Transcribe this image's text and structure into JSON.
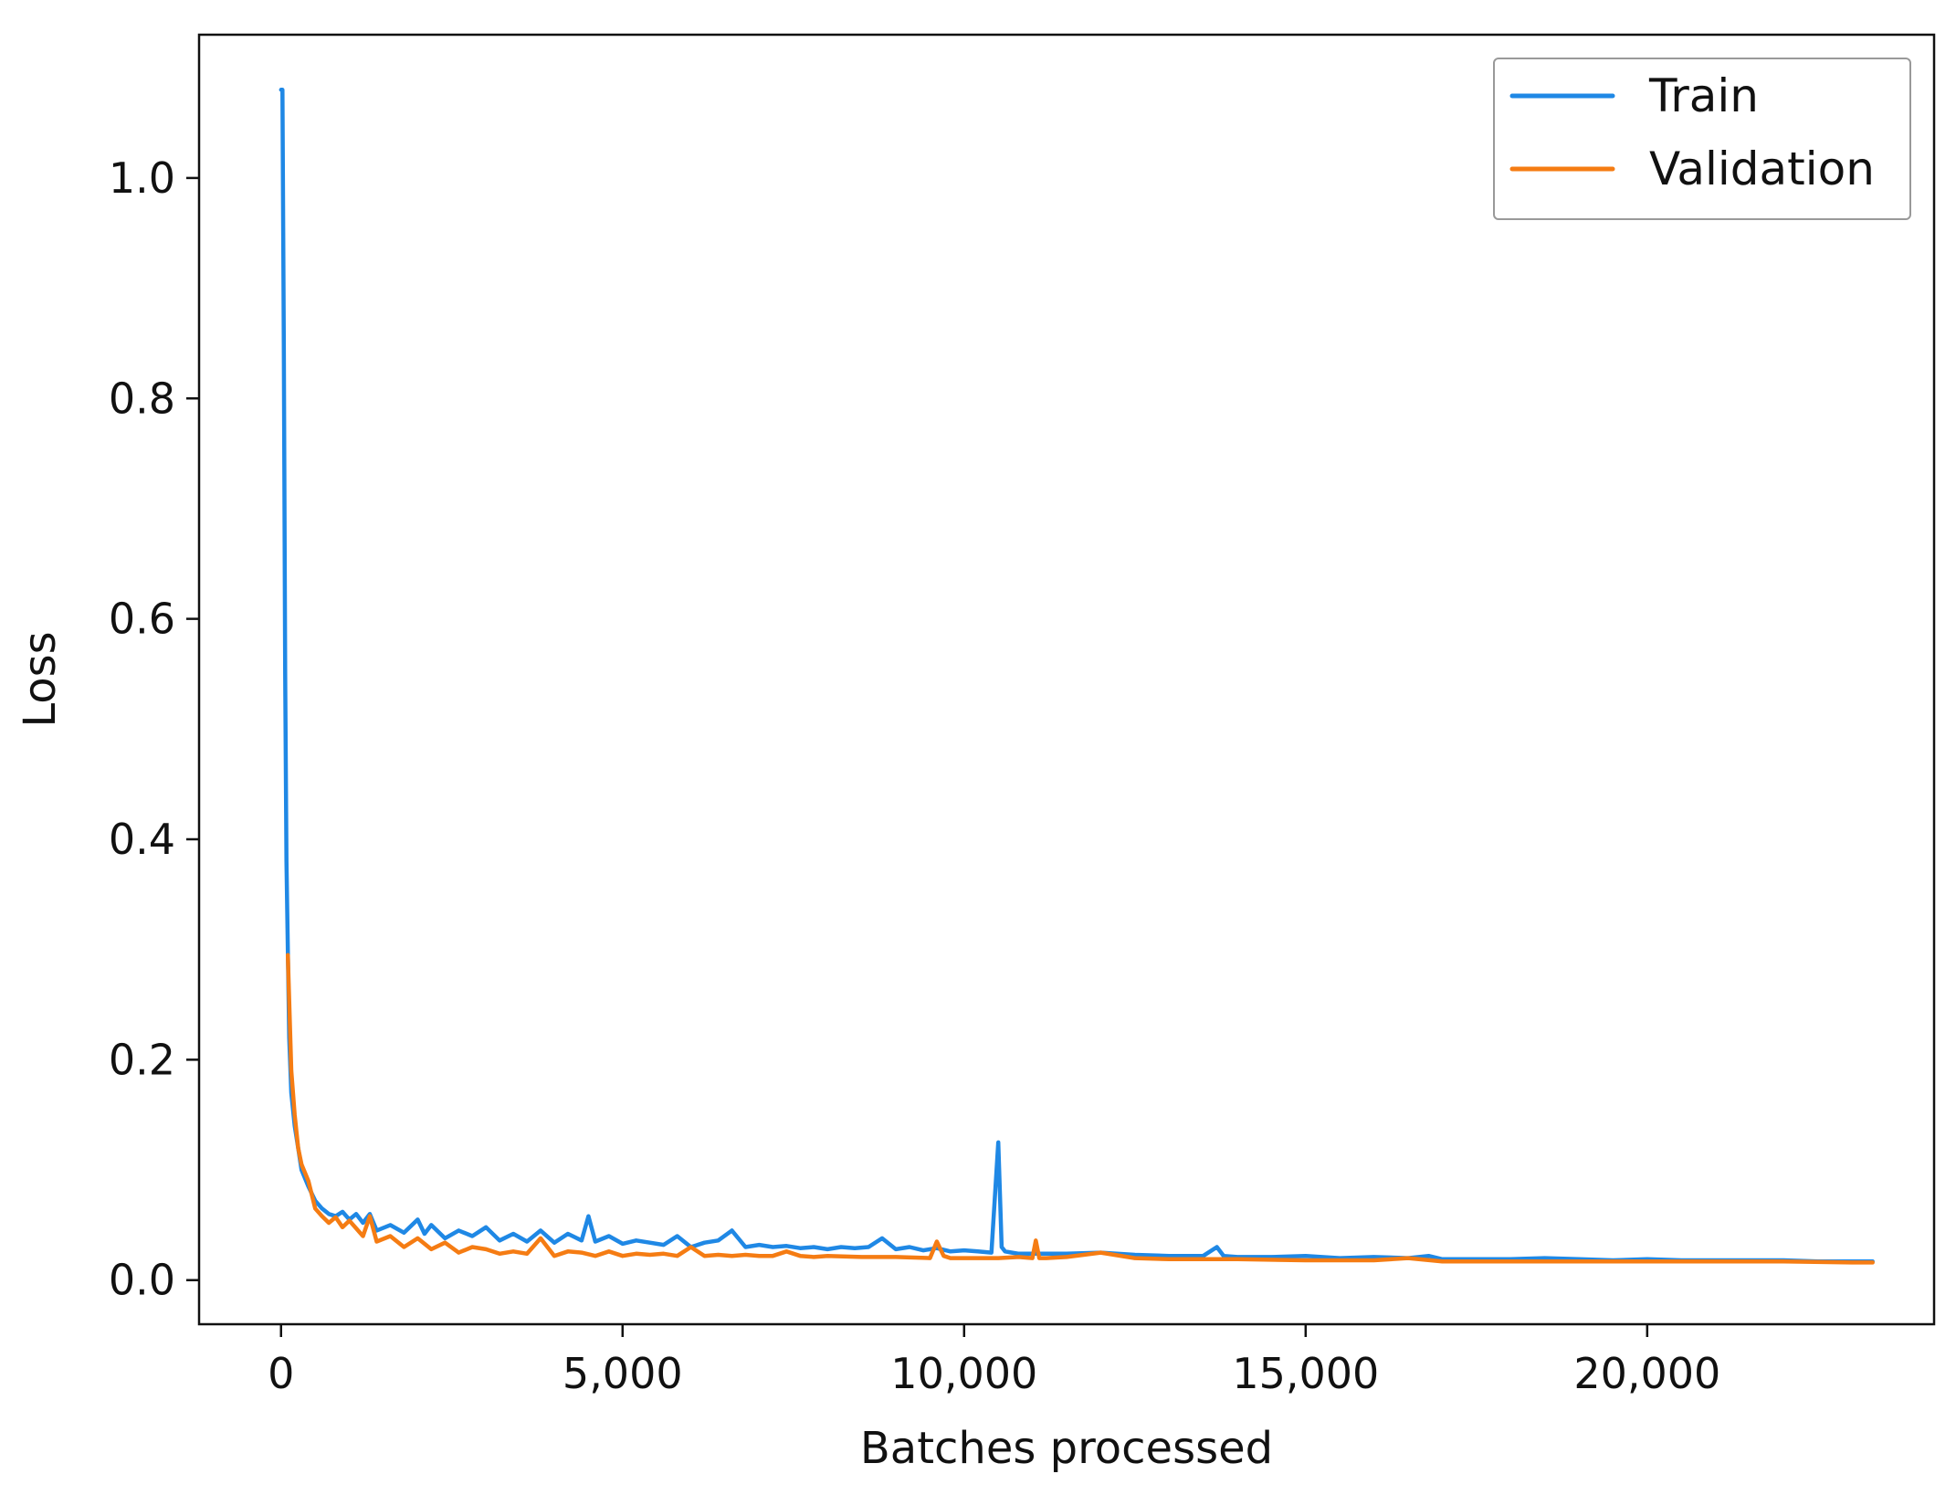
{
  "chart_data": {
    "type": "line",
    "title": "",
    "xlabel": "Batches processed",
    "ylabel": "Loss",
    "xlim": [
      -1200,
      24200
    ],
    "ylim": [
      -0.04,
      1.13
    ],
    "xticks": [
      0,
      5000,
      10000,
      15000,
      20000
    ],
    "xtick_labels": [
      "0",
      "5,000",
      "10,000",
      "15,000",
      "20,000"
    ],
    "yticks": [
      0.0,
      0.2,
      0.4,
      0.6,
      0.8,
      1.0
    ],
    "ytick_labels": [
      "0.0",
      "0.2",
      "0.4",
      "0.6",
      "0.8",
      "1.0"
    ],
    "grid": false,
    "legend_position": "top-right",
    "series": [
      {
        "name": "Train",
        "color": "#1f88e5",
        "x": [
          0,
          20,
          40,
          60,
          80,
          100,
          120,
          150,
          200,
          250,
          300,
          400,
          500,
          600,
          700,
          800,
          900,
          1000,
          1100,
          1200,
          1300,
          1400,
          1600,
          1800,
          2000,
          2100,
          2200,
          2400,
          2600,
          2800,
          3000,
          3200,
          3400,
          3600,
          3800,
          4000,
          4200,
          4400,
          4500,
          4600,
          4800,
          5000,
          5200,
          5400,
          5600,
          5800,
          6000,
          6200,
          6400,
          6600,
          6800,
          7000,
          7200,
          7400,
          7600,
          7800,
          8000,
          8200,
          8400,
          8600,
          8800,
          9000,
          9200,
          9400,
          9600,
          9800,
          10000,
          10200,
          10400,
          10500,
          10550,
          10600,
          10700,
          10800,
          11000,
          11500,
          12000,
          12500,
          13000,
          13500,
          13700,
          13800,
          14000,
          14500,
          15000,
          15500,
          16000,
          16500,
          16800,
          17000,
          17500,
          18000,
          18500,
          19000,
          19500,
          20000,
          20500,
          21000,
          21500,
          22000,
          22500,
          23000,
          23300
        ],
        "y": [
          1.08,
          1.08,
          0.85,
          0.55,
          0.38,
          0.3,
          0.22,
          0.17,
          0.14,
          0.12,
          0.1,
          0.085,
          0.072,
          0.065,
          0.06,
          0.058,
          0.062,
          0.055,
          0.06,
          0.052,
          0.06,
          0.045,
          0.05,
          0.043,
          0.055,
          0.042,
          0.05,
          0.038,
          0.045,
          0.04,
          0.048,
          0.036,
          0.042,
          0.035,
          0.045,
          0.034,
          0.042,
          0.036,
          0.058,
          0.035,
          0.04,
          0.033,
          0.036,
          0.034,
          0.032,
          0.04,
          0.03,
          0.034,
          0.036,
          0.045,
          0.03,
          0.032,
          0.03,
          0.031,
          0.029,
          0.03,
          0.028,
          0.03,
          0.029,
          0.03,
          0.038,
          0.028,
          0.03,
          0.027,
          0.029,
          0.026,
          0.027,
          0.026,
          0.025,
          0.125,
          0.03,
          0.026,
          0.025,
          0.024,
          0.024,
          0.024,
          0.025,
          0.023,
          0.022,
          0.022,
          0.03,
          0.022,
          0.021,
          0.021,
          0.022,
          0.02,
          0.021,
          0.02,
          0.022,
          0.019,
          0.019,
          0.019,
          0.02,
          0.019,
          0.018,
          0.019,
          0.018,
          0.018,
          0.018,
          0.018,
          0.017,
          0.017,
          0.017
        ]
      },
      {
        "name": "Validation",
        "color": "#f57c13",
        "x": [
          100,
          150,
          200,
          250,
          300,
          400,
          500,
          600,
          700,
          800,
          900,
          1000,
          1200,
          1300,
          1400,
          1600,
          1800,
          2000,
          2200,
          2400,
          2600,
          2800,
          3000,
          3200,
          3400,
          3600,
          3800,
          4000,
          4200,
          4400,
          4600,
          4800,
          5000,
          5200,
          5400,
          5600,
          5800,
          6000,
          6200,
          6400,
          6600,
          6800,
          7000,
          7200,
          7400,
          7600,
          7800,
          8000,
          8500,
          9000,
          9500,
          9600,
          9700,
          9800,
          10000,
          10500,
          10800,
          11000,
          11050,
          11100,
          11200,
          11500,
          12000,
          12500,
          13000,
          14000,
          15000,
          16000,
          16500,
          17000,
          18000,
          19000,
          20000,
          21000,
          22000,
          23000,
          23300
        ],
        "y": [
          0.295,
          0.19,
          0.15,
          0.12,
          0.105,
          0.09,
          0.065,
          0.058,
          0.052,
          0.057,
          0.048,
          0.054,
          0.04,
          0.058,
          0.035,
          0.04,
          0.03,
          0.038,
          0.028,
          0.034,
          0.025,
          0.03,
          0.028,
          0.024,
          0.026,
          0.024,
          0.038,
          0.022,
          0.026,
          0.025,
          0.022,
          0.026,
          0.022,
          0.024,
          0.023,
          0.024,
          0.022,
          0.03,
          0.022,
          0.023,
          0.022,
          0.023,
          0.022,
          0.022,
          0.026,
          0.022,
          0.021,
          0.022,
          0.021,
          0.021,
          0.02,
          0.035,
          0.022,
          0.02,
          0.02,
          0.02,
          0.021,
          0.02,
          0.036,
          0.02,
          0.02,
          0.021,
          0.025,
          0.02,
          0.019,
          0.019,
          0.018,
          0.018,
          0.02,
          0.017,
          0.017,
          0.017,
          0.017,
          0.017,
          0.017,
          0.016,
          0.016
        ]
      }
    ]
  }
}
